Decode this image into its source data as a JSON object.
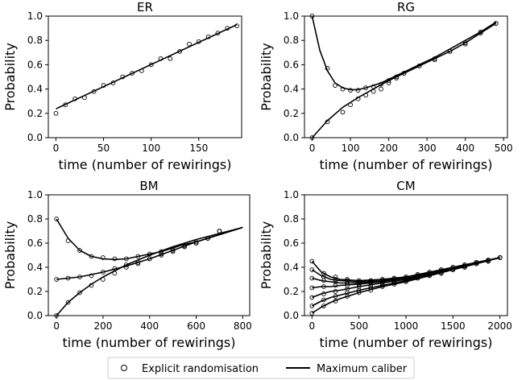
{
  "legend": {
    "randomisation_label": "Explicit randomisation",
    "caliber_label": "Maximum caliber"
  },
  "chart_data": [
    {
      "type": "line",
      "title": "ER",
      "xlabel": "time (number of rewirings)",
      "ylabel": "Probability",
      "xlim": [
        -8,
        195
      ],
      "ylim": [
        0,
        1
      ],
      "xticks": [
        0,
        50,
        100,
        150
      ],
      "yticks": [
        0.0,
        0.2,
        0.4,
        0.6,
        0.8,
        1.0
      ],
      "series": [
        {
          "kind": "maximum-caliber",
          "x": [
            0,
            2,
            190
          ],
          "y": [
            0.235,
            0.245,
            0.93
          ]
        },
        {
          "kind": "explicit-randomisation",
          "x": [
            0,
            10,
            20,
            30,
            40,
            50,
            60,
            70,
            80,
            90,
            100,
            110,
            120,
            130,
            140,
            150,
            160,
            170,
            180,
            190
          ],
          "y": [
            0.2,
            0.27,
            0.32,
            0.33,
            0.38,
            0.43,
            0.45,
            0.5,
            0.53,
            0.55,
            0.6,
            0.65,
            0.65,
            0.71,
            0.77,
            0.79,
            0.83,
            0.86,
            0.9,
            0.92
          ]
        }
      ]
    },
    {
      "type": "line",
      "title": "RG",
      "xlabel": "time (number of rewirings)",
      "ylabel": "Probability",
      "xlim": [
        -20,
        510
      ],
      "ylim": [
        0,
        1
      ],
      "xticks": [
        0,
        100,
        200,
        300,
        400,
        500
      ],
      "yticks": [
        0.0,
        0.2,
        0.4,
        0.6,
        0.8,
        1.0
      ],
      "series": [
        {
          "kind": "maximum-caliber",
          "x": [
            0,
            20,
            40,
            60,
            80,
            100,
            120,
            140,
            160,
            180,
            200,
            240,
            280,
            320,
            360,
            400,
            440,
            480
          ],
          "y": [
            1.0,
            0.72,
            0.55,
            0.45,
            0.41,
            0.395,
            0.395,
            0.41,
            0.43,
            0.45,
            0.48,
            0.54,
            0.6,
            0.66,
            0.73,
            0.8,
            0.87,
            0.95
          ]
        },
        {
          "kind": "maximum-caliber",
          "x": [
            0,
            40,
            80,
            120,
            160,
            200,
            240,
            280,
            320,
            360,
            400,
            440,
            480
          ],
          "y": [
            0.0,
            0.14,
            0.25,
            0.33,
            0.4,
            0.47,
            0.53,
            0.59,
            0.65,
            0.71,
            0.78,
            0.86,
            0.94
          ]
        },
        {
          "kind": "explicit-randomisation",
          "x": [
            0,
            40,
            60,
            80,
            100,
            120,
            140,
            160,
            180,
            200,
            220,
            240,
            280,
            320,
            360,
            400,
            440,
            480
          ],
          "y": [
            1.0,
            0.57,
            0.43,
            0.4,
            0.39,
            0.39,
            0.41,
            0.42,
            0.44,
            0.47,
            0.49,
            0.53,
            0.59,
            0.65,
            0.71,
            0.77,
            0.86,
            0.94
          ]
        },
        {
          "kind": "explicit-randomisation",
          "x": [
            0,
            40,
            80,
            100,
            120,
            140,
            160,
            180,
            200,
            220,
            240,
            280,
            320,
            360,
            400,
            440,
            480
          ],
          "y": [
            0.0,
            0.13,
            0.21,
            0.27,
            0.32,
            0.35,
            0.38,
            0.4,
            0.45,
            0.5,
            0.53,
            0.59,
            0.64,
            0.71,
            0.78,
            0.87,
            0.94
          ]
        }
      ]
    },
    {
      "type": "line",
      "title": "BM",
      "xlabel": "time (number of rewirings)",
      "ylabel": "Probability",
      "xlim": [
        -35,
        830
      ],
      "ylim": [
        0,
        1
      ],
      "xticks": [
        0,
        200,
        400,
        600,
        800
      ],
      "yticks": [
        0.0,
        0.2,
        0.4,
        0.6,
        0.8,
        1.0
      ],
      "series": [
        {
          "kind": "maximum-caliber",
          "x": [
            0,
            50,
            100,
            150,
            200,
            250,
            300,
            350,
            400,
            450,
            500,
            550,
            600,
            650,
            700,
            750,
            800
          ],
          "y": [
            0.8,
            0.64,
            0.54,
            0.49,
            0.47,
            0.465,
            0.47,
            0.49,
            0.51,
            0.53,
            0.56,
            0.59,
            0.61,
            0.64,
            0.67,
            0.7,
            0.73
          ]
        },
        {
          "kind": "maximum-caliber",
          "x": [
            0,
            100,
            200,
            300,
            400,
            500,
            600,
            700,
            800
          ],
          "y": [
            0.3,
            0.32,
            0.36,
            0.41,
            0.47,
            0.54,
            0.61,
            0.67,
            0.73
          ]
        },
        {
          "kind": "maximum-caliber",
          "x": [
            0,
            50,
            100,
            150,
            200,
            300,
            400,
            500,
            600,
            700,
            800
          ],
          "y": [
            0.0,
            0.11,
            0.19,
            0.26,
            0.32,
            0.42,
            0.5,
            0.57,
            0.63,
            0.68,
            0.73
          ]
        },
        {
          "kind": "explicit-randomisation",
          "x": [
            0,
            50,
            100,
            150,
            200,
            250,
            300,
            350,
            400,
            450,
            500,
            550,
            600,
            650,
            700
          ],
          "y": [
            0.8,
            0.62,
            0.54,
            0.49,
            0.48,
            0.47,
            0.47,
            0.49,
            0.51,
            0.53,
            0.55,
            0.58,
            0.61,
            0.64,
            0.7
          ]
        },
        {
          "kind": "explicit-randomisation",
          "x": [
            0,
            50,
            100,
            150,
            200,
            250,
            300,
            350,
            400,
            450,
            500,
            550,
            600,
            650,
            700
          ],
          "y": [
            0.3,
            0.31,
            0.32,
            0.33,
            0.36,
            0.39,
            0.42,
            0.44,
            0.47,
            0.51,
            0.54,
            0.57,
            0.6,
            0.64,
            0.7
          ]
        },
        {
          "kind": "explicit-randomisation",
          "x": [
            0,
            50,
            100,
            150,
            200,
            250,
            300,
            350,
            400,
            450,
            500,
            550,
            600,
            650,
            700
          ],
          "y": [
            0.0,
            0.11,
            0.19,
            0.25,
            0.3,
            0.35,
            0.4,
            0.43,
            0.47,
            0.5,
            0.53,
            0.57,
            0.6,
            0.64,
            0.7
          ]
        }
      ]
    },
    {
      "type": "line",
      "title": "CM",
      "xlabel": "time (number of rewirings)",
      "ylabel": "Probability",
      "xlim": [
        -80,
        2080
      ],
      "ylim": [
        0,
        1
      ],
      "xticks": [
        0,
        500,
        1000,
        1500,
        2000
      ],
      "yticks": [
        0.0,
        0.2,
        0.4,
        0.6,
        0.8,
        1.0
      ],
      "series": [
        {
          "kind": "maximum-caliber",
          "x": [
            0,
            100,
            200,
            300,
            500,
            750,
            1000,
            1250,
            1500,
            1750,
            2000
          ],
          "y": [
            0.45,
            0.36,
            0.32,
            0.3,
            0.29,
            0.3,
            0.32,
            0.36,
            0.4,
            0.44,
            0.48
          ]
        },
        {
          "kind": "maximum-caliber",
          "x": [
            0,
            100,
            200,
            300,
            500,
            750,
            1000,
            1250,
            1500,
            1750,
            2000
          ],
          "y": [
            0.38,
            0.33,
            0.3,
            0.29,
            0.28,
            0.3,
            0.32,
            0.35,
            0.4,
            0.44,
            0.48
          ]
        },
        {
          "kind": "maximum-caliber",
          "x": [
            0,
            100,
            200,
            300,
            500,
            750,
            1000,
            1250,
            1500,
            1750,
            2000
          ],
          "y": [
            0.31,
            0.29,
            0.28,
            0.27,
            0.27,
            0.29,
            0.31,
            0.35,
            0.39,
            0.44,
            0.48
          ]
        },
        {
          "kind": "maximum-caliber",
          "x": [
            0,
            100,
            200,
            300,
            500,
            750,
            1000,
            1250,
            1500,
            1750,
            2000
          ],
          "y": [
            0.23,
            0.24,
            0.24,
            0.25,
            0.26,
            0.28,
            0.31,
            0.34,
            0.39,
            0.43,
            0.48
          ]
        },
        {
          "kind": "maximum-caliber",
          "x": [
            0,
            100,
            200,
            300,
            500,
            750,
            1000,
            1250,
            1500,
            1750,
            2000
          ],
          "y": [
            0.15,
            0.18,
            0.2,
            0.21,
            0.24,
            0.27,
            0.3,
            0.34,
            0.38,
            0.43,
            0.48
          ]
        },
        {
          "kind": "maximum-caliber",
          "x": [
            0,
            100,
            200,
            300,
            500,
            750,
            1000,
            1250,
            1500,
            1750,
            2000
          ],
          "y": [
            0.08,
            0.12,
            0.15,
            0.17,
            0.21,
            0.25,
            0.29,
            0.33,
            0.38,
            0.43,
            0.48
          ]
        },
        {
          "kind": "maximum-caliber",
          "x": [
            0,
            100,
            200,
            300,
            500,
            750,
            1000,
            1250,
            1500,
            1750,
            2000
          ],
          "y": [
            0.02,
            0.07,
            0.11,
            0.14,
            0.19,
            0.24,
            0.28,
            0.33,
            0.38,
            0.43,
            0.48
          ]
        },
        {
          "kind": "explicit-randomisation",
          "x": [
            0,
            125,
            250,
            375,
            500,
            625,
            750,
            875,
            1000,
            1125,
            1250,
            1375,
            1500,
            1625,
            1750,
            1875,
            2000
          ],
          "y": [
            0.45,
            0.35,
            0.32,
            0.3,
            0.29,
            0.29,
            0.3,
            0.31,
            0.32,
            0.34,
            0.36,
            0.38,
            0.4,
            0.42,
            0.44,
            0.46,
            0.48
          ]
        },
        {
          "kind": "explicit-randomisation",
          "x": [
            0,
            125,
            250,
            375,
            500,
            625,
            750,
            875,
            1000,
            1125,
            1250,
            1375,
            1500,
            1625,
            1750,
            1875,
            2000
          ],
          "y": [
            0.38,
            0.32,
            0.3,
            0.29,
            0.28,
            0.29,
            0.3,
            0.31,
            0.32,
            0.34,
            0.35,
            0.38,
            0.4,
            0.42,
            0.44,
            0.46,
            0.48
          ]
        },
        {
          "kind": "explicit-randomisation",
          "x": [
            0,
            125,
            250,
            375,
            500,
            625,
            750,
            875,
            1000,
            1125,
            1250,
            1375,
            1500,
            1625,
            1750,
            1875,
            2000
          ],
          "y": [
            0.31,
            0.29,
            0.28,
            0.27,
            0.27,
            0.28,
            0.29,
            0.3,
            0.31,
            0.33,
            0.35,
            0.37,
            0.39,
            0.41,
            0.44,
            0.46,
            0.48
          ]
        },
        {
          "kind": "explicit-randomisation",
          "x": [
            0,
            125,
            250,
            375,
            500,
            625,
            750,
            875,
            1000,
            1125,
            1250,
            1375,
            1500,
            1625,
            1750,
            1875,
            2000
          ],
          "y": [
            0.23,
            0.24,
            0.25,
            0.25,
            0.26,
            0.27,
            0.28,
            0.29,
            0.31,
            0.32,
            0.34,
            0.36,
            0.38,
            0.41,
            0.43,
            0.46,
            0.48
          ]
        },
        {
          "kind": "explicit-randomisation",
          "x": [
            0,
            125,
            250,
            375,
            500,
            625,
            750,
            875,
            1000,
            1125,
            1250,
            1375,
            1500,
            1625,
            1750,
            1875,
            2000
          ],
          "y": [
            0.15,
            0.18,
            0.2,
            0.22,
            0.24,
            0.25,
            0.27,
            0.28,
            0.3,
            0.32,
            0.34,
            0.36,
            0.38,
            0.41,
            0.43,
            0.45,
            0.48
          ]
        },
        {
          "kind": "explicit-randomisation",
          "x": [
            0,
            125,
            250,
            375,
            500,
            625,
            750,
            875,
            1000,
            1125,
            1250,
            1375,
            1500,
            1625,
            1750,
            1875,
            2000
          ],
          "y": [
            0.08,
            0.13,
            0.16,
            0.19,
            0.21,
            0.23,
            0.25,
            0.27,
            0.29,
            0.31,
            0.33,
            0.35,
            0.38,
            0.4,
            0.43,
            0.45,
            0.48
          ]
        },
        {
          "kind": "explicit-randomisation",
          "x": [
            0,
            125,
            250,
            375,
            500,
            625,
            750,
            875,
            1000,
            1125,
            1250,
            1375,
            1500,
            1625,
            1750,
            1875,
            2000
          ],
          "y": [
            0.02,
            0.08,
            0.12,
            0.16,
            0.19,
            0.21,
            0.24,
            0.26,
            0.28,
            0.31,
            0.33,
            0.35,
            0.38,
            0.4,
            0.43,
            0.45,
            0.48
          ]
        }
      ]
    }
  ]
}
